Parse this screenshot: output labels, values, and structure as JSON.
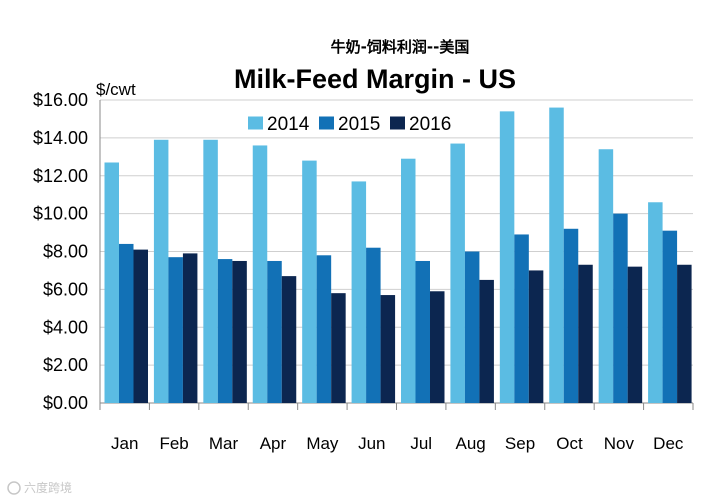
{
  "chart_data": {
    "type": "bar",
    "title": "Milk-Feed Margin - US",
    "subtitle": "牛奶-饲料利润--美国",
    "ylabel": "$/cwt",
    "xlabel": "",
    "ylim": [
      0,
      16
    ],
    "yticks": [
      0,
      2,
      4,
      6,
      8,
      10,
      12,
      14,
      16
    ],
    "ytick_labels": [
      "$0.00",
      "$2.00",
      "$4.00",
      "$6.00",
      "$8.00",
      "$10.00",
      "$12.00",
      "$14.00",
      "$16.00"
    ],
    "grid": true,
    "legend_position": "top-center",
    "categories": [
      "Jan",
      "Feb",
      "Mar",
      "Apr",
      "May",
      "Jun",
      "Jul",
      "Aug",
      "Sep",
      "Oct",
      "Nov",
      "Dec"
    ],
    "series": [
      {
        "name": "2014",
        "color": "#5bbce3",
        "values": [
          12.7,
          13.9,
          13.9,
          13.6,
          12.8,
          11.7,
          12.9,
          13.7,
          15.4,
          15.6,
          13.4,
          10.6
        ]
      },
      {
        "name": "2015",
        "color": "#1271b6",
        "values": [
          8.4,
          7.7,
          7.6,
          7.5,
          7.8,
          8.2,
          7.5,
          8.0,
          8.9,
          9.2,
          10.0,
          9.1
        ]
      },
      {
        "name": "2016",
        "color": "#0c2650",
        "values": [
          8.1,
          7.9,
          7.5,
          6.7,
          5.8,
          5.7,
          5.9,
          6.5,
          7.0,
          7.3,
          7.2,
          7.3
        ]
      }
    ]
  },
  "watermark": {
    "text": "六度跨境"
  }
}
